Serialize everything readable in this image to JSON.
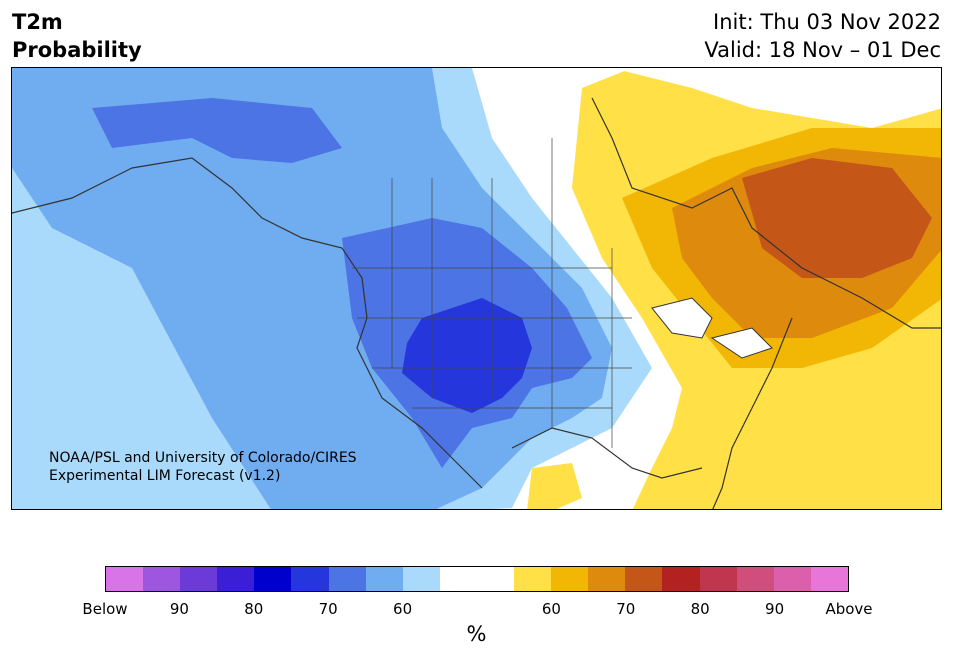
{
  "header": {
    "title_line1": "T2m",
    "title_line2": "Probability",
    "init": "Init: Thu 03 Nov 2022",
    "valid": "Valid: 18 Nov – 01 Dec"
  },
  "credit": {
    "line1": "NOAA/PSL and University of Colorado/CIRES",
    "line2": "Experimental LIM Forecast (v1.2)"
  },
  "colorbar": {
    "colors": [
      "#d873e8",
      "#9e55e0",
      "#6b3ad8",
      "#3a1fd6",
      "#0000cc",
      "#2537dc",
      "#4d74e4",
      "#70acf0",
      "#a9dafb",
      "#ffffff",
      "#ffffff",
      "#ffe047",
      "#f2b705",
      "#de8a0c",
      "#c45618",
      "#b32121",
      "#c0364e",
      "#cf4e7c",
      "#dc5fac",
      "#e875d8"
    ],
    "tick_labels": [
      "Below",
      "90",
      "80",
      "70",
      "60",
      "60",
      "70",
      "80",
      "90",
      "Above"
    ],
    "unit": "%"
  },
  "legend_colors": {
    "ocean": "#ffffff",
    "land_neutral": "#ffffff",
    "coast": "#333333"
  }
}
